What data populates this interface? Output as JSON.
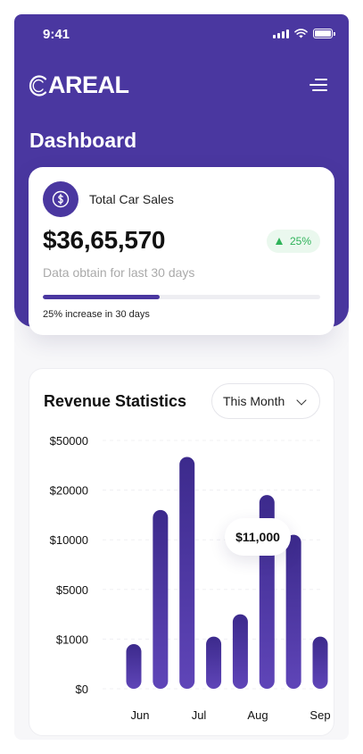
{
  "status_bar": {
    "time": "9:41"
  },
  "app": {
    "logo": "AREAL"
  },
  "page": {
    "title": "Dashboard"
  },
  "sales_card": {
    "label": "Total Car Sales",
    "value": "$36,65,570",
    "change": "25%",
    "subtitle": "Data obtain for last 30 days",
    "progress": 0.42,
    "progress_note": "25% increase in 30 days",
    "icon": "dollar-coin-icon"
  },
  "revenue": {
    "title": "Revenue Statistics",
    "range_selected": "This Month",
    "tooltip": "$11,000"
  },
  "colors": {
    "primary": "#4a37a0",
    "positive": "#2fb35a",
    "positive_bg": "#eaf8ee"
  },
  "chart_data": {
    "type": "bar",
    "title": "Revenue Statistics",
    "y_ticks": [
      "$50000",
      "$20000",
      "$10000",
      "$5000",
      "$1000",
      "$0"
    ],
    "x_ticks": [
      "Jun",
      "Jul",
      "Aug",
      "Sep"
    ],
    "tick_scale": "non-linear",
    "tick_values": [
      50000,
      20000,
      10000,
      5000,
      1000,
      0
    ],
    "values": [
      900,
      16000,
      40000,
      1200,
      3000,
      19000,
      11000,
      1200
    ],
    "highlighted_value": 11000,
    "grid": true,
    "legend": "none"
  }
}
